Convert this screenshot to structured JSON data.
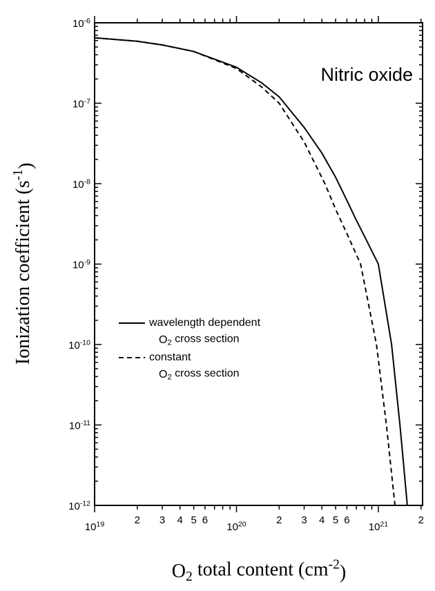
{
  "chart_data": {
    "type": "line",
    "annotation": "Nitric oxide",
    "x_label": "O_2 total content (cm^-2)",
    "y_label": "Ionization coefficient (s^-1)",
    "xscale": "log",
    "yscale": "log",
    "xlim": [
      1e+19,
      2.05e+21
    ],
    "ylim": [
      1e-12,
      1e-06
    ],
    "xticks": [
      {
        "value": 1e+19,
        "label": "10^19"
      },
      {
        "value": 2e+19,
        "label": "2"
      },
      {
        "value": 3e+19,
        "label": "3"
      },
      {
        "value": 4e+19,
        "label": "4"
      },
      {
        "value": 5e+19,
        "label": "5"
      },
      {
        "value": 6e+19,
        "label": "6"
      },
      {
        "value": 1e+20,
        "label": "10^20"
      },
      {
        "value": 2e+20,
        "label": "2"
      },
      {
        "value": 3e+20,
        "label": "3"
      },
      {
        "value": 4e+20,
        "label": "4"
      },
      {
        "value": 5e+20,
        "label": "5"
      },
      {
        "value": 6e+20,
        "label": "6"
      },
      {
        "value": 1e+21,
        "label": "10^21"
      },
      {
        "value": 2e+21,
        "label": "2"
      }
    ],
    "xminor": [
      7e+19,
      8e+19,
      9e+19,
      7e+20,
      8e+20,
      9e+20
    ],
    "yticks": [
      {
        "value": 1e-12,
        "label": "10^-12"
      },
      {
        "value": 1e-11,
        "label": "10^-11"
      },
      {
        "value": 1e-10,
        "label": "10^-10"
      },
      {
        "value": 1e-09,
        "label": "10^-9"
      },
      {
        "value": 1e-08,
        "label": "10^-8"
      },
      {
        "value": 1e-07,
        "label": "10^-7"
      },
      {
        "value": 1e-06,
        "label": "10^-6"
      }
    ],
    "yminor": [
      2e-12,
      3e-12,
      4e-12,
      5e-12,
      6e-12,
      7e-12,
      8e-12,
      9e-12,
      2e-11,
      3e-11,
      4e-11,
      5e-11,
      6e-11,
      7e-11,
      8e-11,
      9e-11,
      2e-10,
      3e-10,
      4e-10,
      5e-10,
      6e-10,
      7e-10,
      8e-10,
      9e-10,
      2e-09,
      3e-09,
      4e-09,
      5e-09,
      6e-09,
      7e-09,
      8e-09,
      9e-09,
      2e-08,
      3e-08,
      4e-08,
      5e-08,
      6e-08,
      7e-08,
      8e-08,
      9e-08,
      2e-07,
      3e-07,
      4e-07,
      5e-07,
      6e-07,
      7e-07,
      8e-07,
      9e-07
    ],
    "legend": "center left",
    "series": [
      {
        "name": "wavelength dependent\nO_2 cross section",
        "color": "#000000",
        "dash": "solid",
        "x": [
          1e+19,
          2e+19,
          3e+19,
          5e+19,
          1e+20,
          1.5e+20,
          2e+20,
          3e+20,
          4e+20,
          5e+20,
          6e+20,
          7e+20,
          8e+20,
          1e+21,
          1.24e+21,
          1.42e+21,
          1.5e+21,
          1.6e+21
        ],
        "values": [
          6.5e-07,
          5.9e-07,
          5.3e-07,
          4.4e-07,
          2.8e-07,
          1.8e-07,
          1.2e-07,
          5e-08,
          2.4e-08,
          1.2e-08,
          6.2e-09,
          3.5e-09,
          2.2e-09,
          1e-09,
          1e-10,
          1e-11,
          3.5e-12,
          1e-12
        ]
      },
      {
        "name": "constant\nO_2 cross section",
        "color": "#000000",
        "dash": "dashed",
        "x": [
          1e+19,
          2e+19,
          3e+19,
          5e+19,
          1e+20,
          1.5e+20,
          2e+20,
          3e+20,
          4.2e+20,
          5e+20,
          6e+20,
          7.5e+20,
          9.7e+20,
          1.14e+21,
          1.31e+21
        ],
        "values": [
          6.5e-07,
          5.9e-07,
          5.3e-07,
          4.4e-07,
          2.7e-07,
          1.6e-07,
          1e-07,
          3.3e-08,
          1e-08,
          4.8e-09,
          2.4e-09,
          1e-09,
          1e-10,
          1e-11,
          1e-12
        ]
      }
    ]
  }
}
